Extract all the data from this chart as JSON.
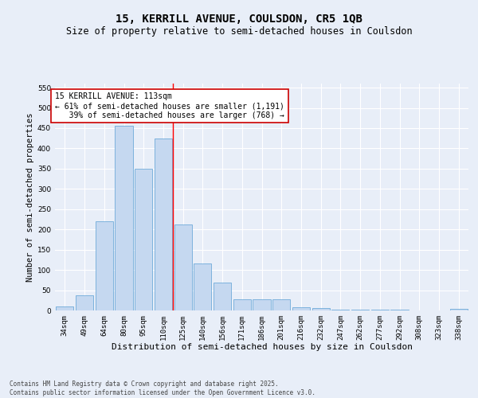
{
  "title_line1": "15, KERRILL AVENUE, COULSDON, CR5 1QB",
  "title_line2": "Size of property relative to semi-detached houses in Coulsdon",
  "xlabel": "Distribution of semi-detached houses by size in Coulsdon",
  "ylabel": "Number of semi-detached properties",
  "categories": [
    "34sqm",
    "49sqm",
    "64sqm",
    "80sqm",
    "95sqm",
    "110sqm",
    "125sqm",
    "140sqm",
    "156sqm",
    "171sqm",
    "186sqm",
    "201sqm",
    "216sqm",
    "232sqm",
    "247sqm",
    "262sqm",
    "277sqm",
    "292sqm",
    "308sqm",
    "323sqm",
    "338sqm"
  ],
  "values": [
    10,
    38,
    220,
    455,
    350,
    425,
    213,
    115,
    68,
    27,
    27,
    27,
    8,
    5,
    2,
    1,
    1,
    1,
    0,
    0,
    3
  ],
  "bar_color": "#c5d8f0",
  "bar_edge_color": "#5a9fd4",
  "background_color": "#e8eef8",
  "grid_color": "#ffffff",
  "red_line_x": 5.5,
  "annotation_text": "15 KERRILL AVENUE: 113sqm\n← 61% of semi-detached houses are smaller (1,191)\n   39% of semi-detached houses are larger (768) →",
  "annotation_box_color": "#ffffff",
  "annotation_box_edge": "#cc0000",
  "ylim": [
    0,
    560
  ],
  "yticks": [
    0,
    50,
    100,
    150,
    200,
    250,
    300,
    350,
    400,
    450,
    500,
    550
  ],
  "footer_text": "Contains HM Land Registry data © Crown copyright and database right 2025.\nContains public sector information licensed under the Open Government Licence v3.0.",
  "title_fontsize": 10,
  "subtitle_fontsize": 8.5,
  "axis_label_fontsize": 7.5,
  "tick_fontsize": 6.5,
  "annotation_fontsize": 7,
  "footer_fontsize": 5.5
}
